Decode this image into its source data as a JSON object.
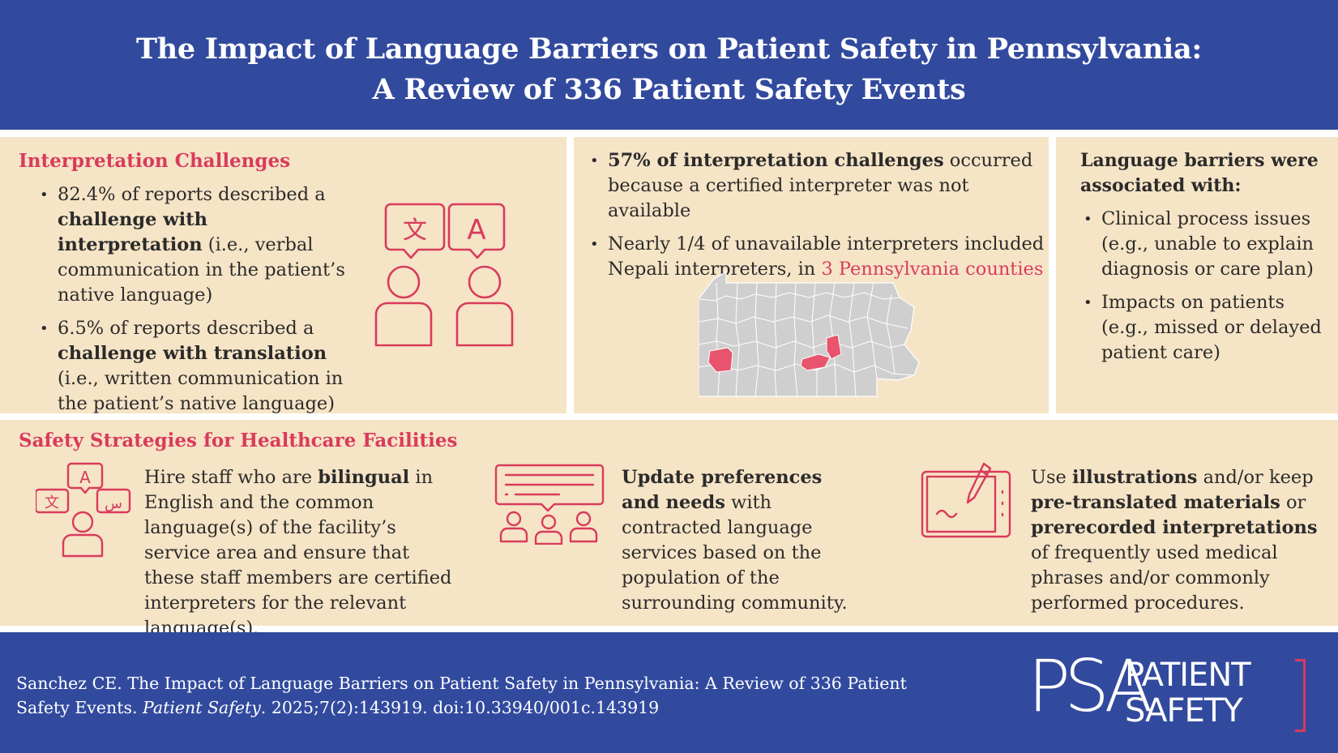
{
  "header": {
    "title_line1": "The Impact of Language Barriers on Patient Safety in Pennsylvania:",
    "title_line2": "A Review of 336 Patient Safety Events"
  },
  "interpretation": {
    "title": "Interpretation Challenges",
    "b1_pre": "82.4% of reports described a ",
    "b1_bold": "challenge with interpretation",
    "b1_post": " (i.e., verbal communication in the patient’s native language)",
    "b2_pre": "6.5% of reports described a ",
    "b2_bold": "challenge with translation",
    "b2_post": " (i.e., written communication in the patient’s native language)",
    "icon_glyph_left": "文",
    "icon_glyph_right": "A"
  },
  "interpreters": {
    "b1_bold": "57% of interpretation challenges",
    "b1_post": " occurred because a certified interpreter was not available",
    "b2_pre": "Nearly 1/4 of unavailable interpreters included Nepali interpreters, in ",
    "b2_red": "3 Pennsylvania counties"
  },
  "associated": {
    "title": "Language barriers were associated with:",
    "items": [
      "Clinical process issues (e.g., unable to explain diagnosis or care plan)",
      "Impacts on patients (e.g., missed or delayed patient care)"
    ]
  },
  "strategies": {
    "title": "Safety Strategies for Healthcare Facilities",
    "s1_pre": "Hire staff who are ",
    "s1_bold": "bilingual",
    "s1_post": " in English and the common language(s) of the facility’s service area and ensure that these staff members are certified interpreters for the relevant language(s).",
    "s1_glyphs": [
      "A",
      "文",
      "س"
    ],
    "s2_bold": "Update preferences and needs",
    "s2_post": " with contracted language services based on the population of the surrounding community.",
    "s3_pre": "Use ",
    "s3_bold1": "illustrations",
    "s3_mid1": " and/or keep ",
    "s3_bold2": "pre-translated materials",
    "s3_mid2": " or ",
    "s3_bold3": "prerecorded interpretations",
    "s3_post": " of frequently used medical phrases and/or commonly performed procedures."
  },
  "footer": {
    "cite_pre": "Sanchez CE. The Impact of Language Barriers on Patient Safety in Pennsylvania: A Review of 336 Patient Safety Events. ",
    "cite_journal": "Patient Safety",
    "cite_post": ". 2025;7(2):143919. doi:10.33940/001c.143919",
    "logo_mark": "PSA",
    "logo_word1": "PATIENT",
    "logo_word2": "SAFETY"
  },
  "colors": {
    "navy": "#324a9e",
    "accent_red": "#d93b5c",
    "panel": "#f6e4c6",
    "map_gray": "#cfcfcf"
  }
}
